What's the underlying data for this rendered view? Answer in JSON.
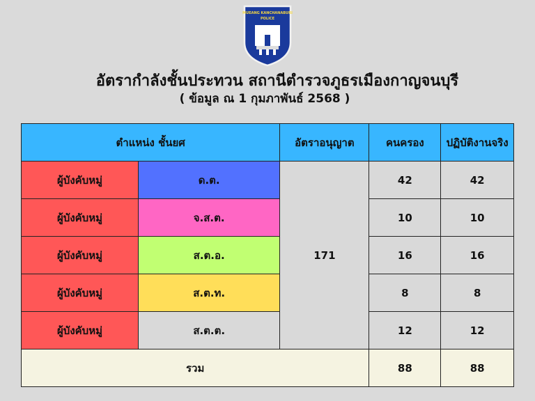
{
  "logo": {
    "text": "MUEANG KANCHANABURI POLICE"
  },
  "title": "อัตรากำลังชั้นประทวน สถานีตำรวจภูธรเมืองกาญจนบุรี",
  "subtitle": "( ข้อมูล ณ 1 กุมภาพันธ์ 2568 )",
  "table": {
    "headers": {
      "position_rank": "ตำแหน่ง  ชั้นยศ",
      "quota": "อัตราอนุญาต",
      "filled": "คนครอง",
      "actual": "ปฏิบัติงานจริง"
    },
    "quota_value": "171",
    "rows": [
      {
        "position": "ผู้บังคับหมู่",
        "rank": "ด.ต.",
        "filled": "42",
        "actual": "42",
        "color": "#5271ff"
      },
      {
        "position": "ผู้บังคับหมู่",
        "rank": "จ.ส.ต.",
        "filled": "10",
        "actual": "10",
        "color": "#ff66c4"
      },
      {
        "position": "ผู้บังคับหมู่",
        "rank": "ส.ต.อ.",
        "filled": "16",
        "actual": "16",
        "color": "#c1ff72"
      },
      {
        "position": "ผู้บังคับหมู่",
        "rank": "ส.ต.ท.",
        "filled": "8",
        "actual": "8",
        "color": "#ffde59"
      },
      {
        "position": "ผู้บังคับหมู่",
        "rank": "ส.ต.ต.",
        "filled": "12",
        "actual": "12",
        "color": "#d9d9d9"
      }
    ],
    "total": {
      "label": "รวม",
      "filled": "88",
      "actual": "88"
    }
  }
}
